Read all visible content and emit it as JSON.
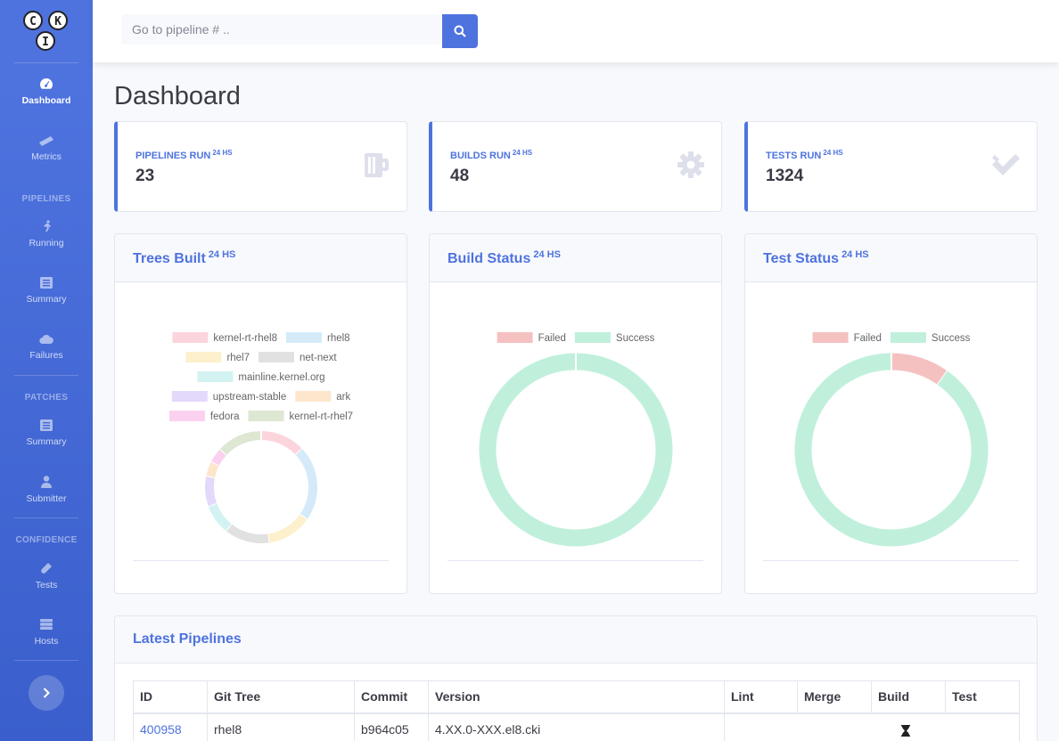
{
  "logo": {
    "letters": [
      "C",
      "K",
      "I"
    ]
  },
  "sidebar": {
    "items": [
      {
        "label": "Dashboard",
        "icon": "tachometer-icon"
      },
      {
        "label": "Metrics",
        "icon": "ruler-icon"
      },
      {
        "label": "Running",
        "icon": "running-icon"
      },
      {
        "label": "Summary",
        "icon": "list-icon"
      },
      {
        "label": "Failures",
        "icon": "cloud-icon"
      },
      {
        "label": "Summary",
        "icon": "list-icon"
      },
      {
        "label": "Submitter",
        "icon": "user-icon"
      },
      {
        "label": "Tests",
        "icon": "vial-icon"
      },
      {
        "label": "Hosts",
        "icon": "server-icon"
      }
    ],
    "headings": {
      "pipelines": "PIPELINES",
      "patches": "PATCHES",
      "confidence": "CONFIDENCE"
    }
  },
  "search": {
    "placeholder": "Go to pipeline # .."
  },
  "page_title": "Dashboard",
  "stats": [
    {
      "label": "PIPELINES RUN",
      "period": "24 HS",
      "value": "23",
      "icon": "beer-mug-icon"
    },
    {
      "label": "BUILDS RUN",
      "period": "24 HS",
      "value": "48",
      "icon": "gear-icon"
    },
    {
      "label": "TESTS RUN",
      "period": "24 HS",
      "value": "1324",
      "icon": "double-check-icon"
    }
  ],
  "cards": {
    "trees_title": "Trees Built",
    "build_title": "Build Status",
    "test_title": "Test Status",
    "period": "24 HS",
    "latest_title": "Latest Pipelines"
  },
  "chart_data": [
    {
      "type": "pie",
      "title": "Trees Built",
      "labels": [
        "kernel-rt-rhel8",
        "rhel8",
        "rhel7",
        "net-next",
        "mainline.kernel.org",
        "upstream-stable",
        "ark",
        "fedora",
        "kernel-rt-rhel7"
      ],
      "values": [
        3,
        5,
        3,
        3,
        2,
        2,
        1,
        1,
        3
      ],
      "colors": [
        "#fcd5dc",
        "#d4eaf9",
        "#fdf0cc",
        "#e1e1e1",
        "#d3f2f2",
        "#e3d9fa",
        "#fde6cc",
        "#fad2f0",
        "#dde7d2"
      ],
      "legend": "top"
    },
    {
      "type": "pie",
      "title": "Build Status",
      "labels": [
        "Failed",
        "Success"
      ],
      "values": [
        0,
        48
      ],
      "colors": [
        "#f5c1c0",
        "#c0f0dc"
      ],
      "legend": "top"
    },
    {
      "type": "pie",
      "title": "Test Status",
      "labels": [
        "Failed",
        "Success"
      ],
      "values": [
        130,
        1194
      ],
      "colors": [
        "#f5c1c0",
        "#c0f0dc"
      ],
      "legend": "top"
    }
  ],
  "table": {
    "headers": [
      "ID",
      "Git Tree",
      "Commit",
      "Version",
      "Lint",
      "Merge",
      "Build",
      "Test"
    ],
    "rows": [
      {
        "id": "400958",
        "tree": "rhel8",
        "commit": "b964c05",
        "version": "4.XX.0-XXX.el8.cki",
        "status_icon": "hourglass-icon"
      }
    ]
  }
}
